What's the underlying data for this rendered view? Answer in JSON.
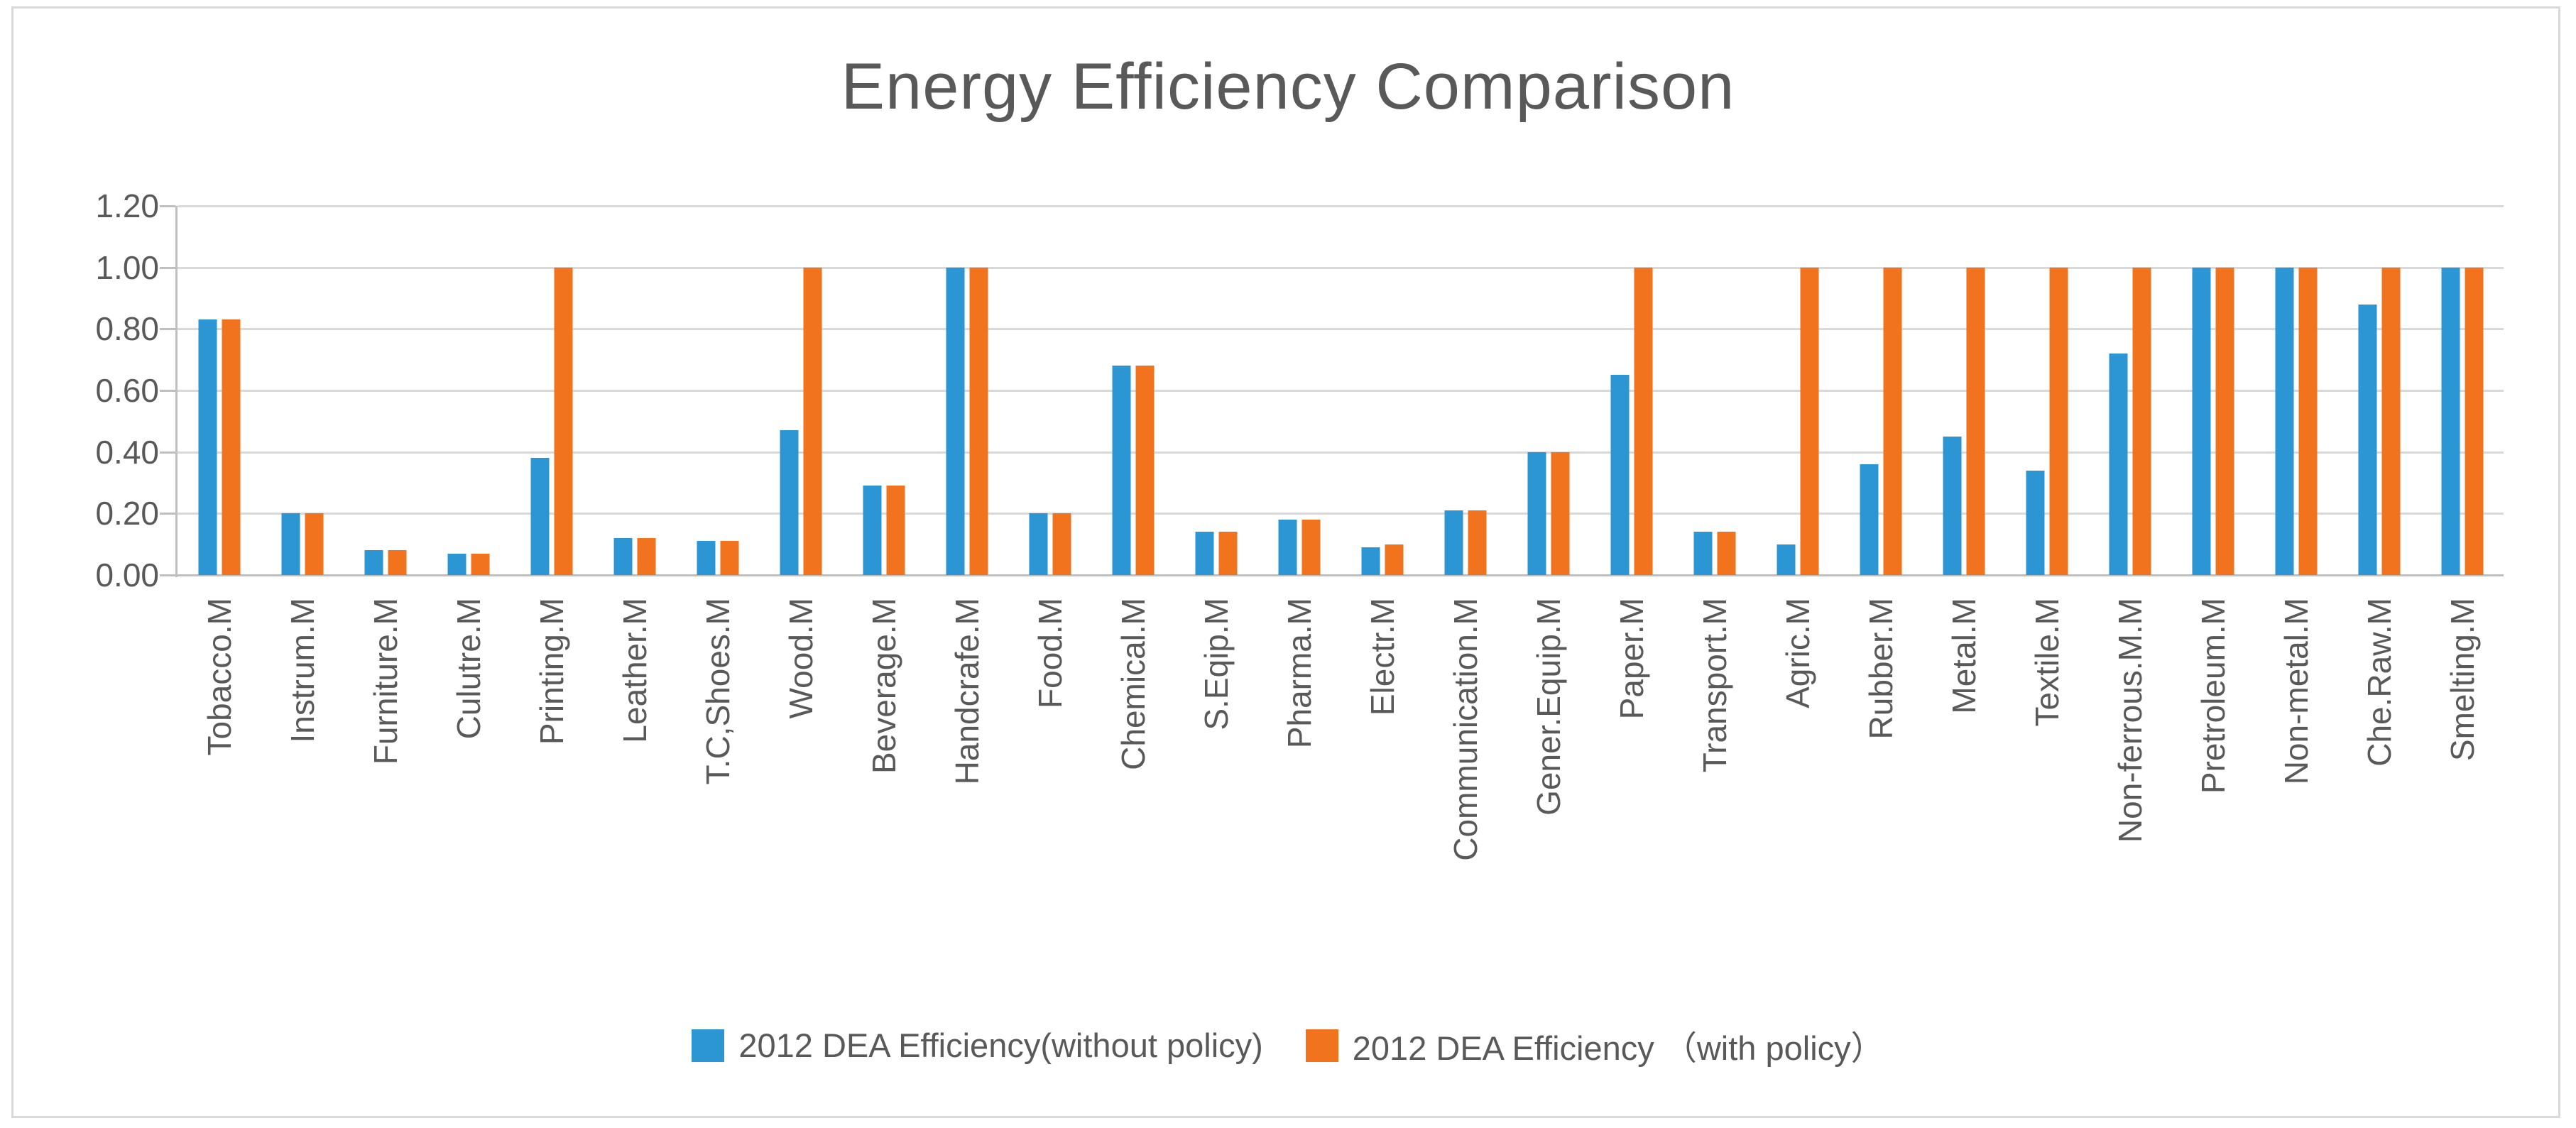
{
  "chart_data": {
    "type": "bar",
    "title": "Energy Efficiency Comparison",
    "categories": [
      "Tobacco.M",
      "Instrum.M",
      "Furniture.M",
      "Culutre.M",
      "Printing.M",
      "Leather.M",
      "T.C,Shoes.M",
      "Wood.M",
      "Beverage.M",
      "Handcrafe.M",
      "Food.M",
      "Chemical.M",
      "S.Eqip.M",
      "Pharma.M",
      "Electr.M",
      "Communication.M",
      "Gener.Equip.M",
      "Paper.M",
      "Transport.M",
      "Agric.M",
      "Rubber.M",
      "Metal.M",
      "Textile.M",
      "Non-ferrous.M.M",
      "Pretroleum.M",
      "Non-metal.M",
      "Che.Raw.M",
      "Smelting.M"
    ],
    "series": [
      {
        "name": "2012 DEA Efficiency(without policy)",
        "key": "without-policy",
        "color": "#2c96d4",
        "values": [
          0.83,
          0.2,
          0.08,
          0.07,
          0.38,
          0.12,
          0.11,
          0.47,
          0.29,
          1.0,
          0.2,
          0.68,
          0.14,
          0.18,
          0.09,
          0.21,
          0.4,
          0.65,
          0.14,
          0.1,
          0.36,
          0.45,
          0.34,
          0.72,
          1.0,
          1.0,
          0.88,
          1.0
        ]
      },
      {
        "name": "2012 DEA Efficiency （with policy）",
        "key": "with-policy",
        "color": "#f1731d",
        "values": [
          0.83,
          0.2,
          0.08,
          0.07,
          1.0,
          0.12,
          0.11,
          1.0,
          0.29,
          1.0,
          0.2,
          0.68,
          0.14,
          0.18,
          0.1,
          0.21,
          0.4,
          1.0,
          0.14,
          1.0,
          1.0,
          1.0,
          1.0,
          1.0,
          1.0,
          1.0,
          1.0,
          1.0
        ]
      }
    ],
    "xlabel": "",
    "ylabel": "",
    "ylim": [
      0,
      1.2
    ],
    "ytick_labels": [
      "0.00",
      "0.20",
      "0.40",
      "0.60",
      "0.80",
      "1.00",
      "1.20"
    ],
    "grid": true,
    "legend_position": "bottom",
    "colors": {
      "text": "#595959",
      "gridline": "#d9d9d9",
      "axis": "#bfbfbf",
      "frame_border": "#d9d9d9",
      "background": "#ffffff"
    }
  }
}
